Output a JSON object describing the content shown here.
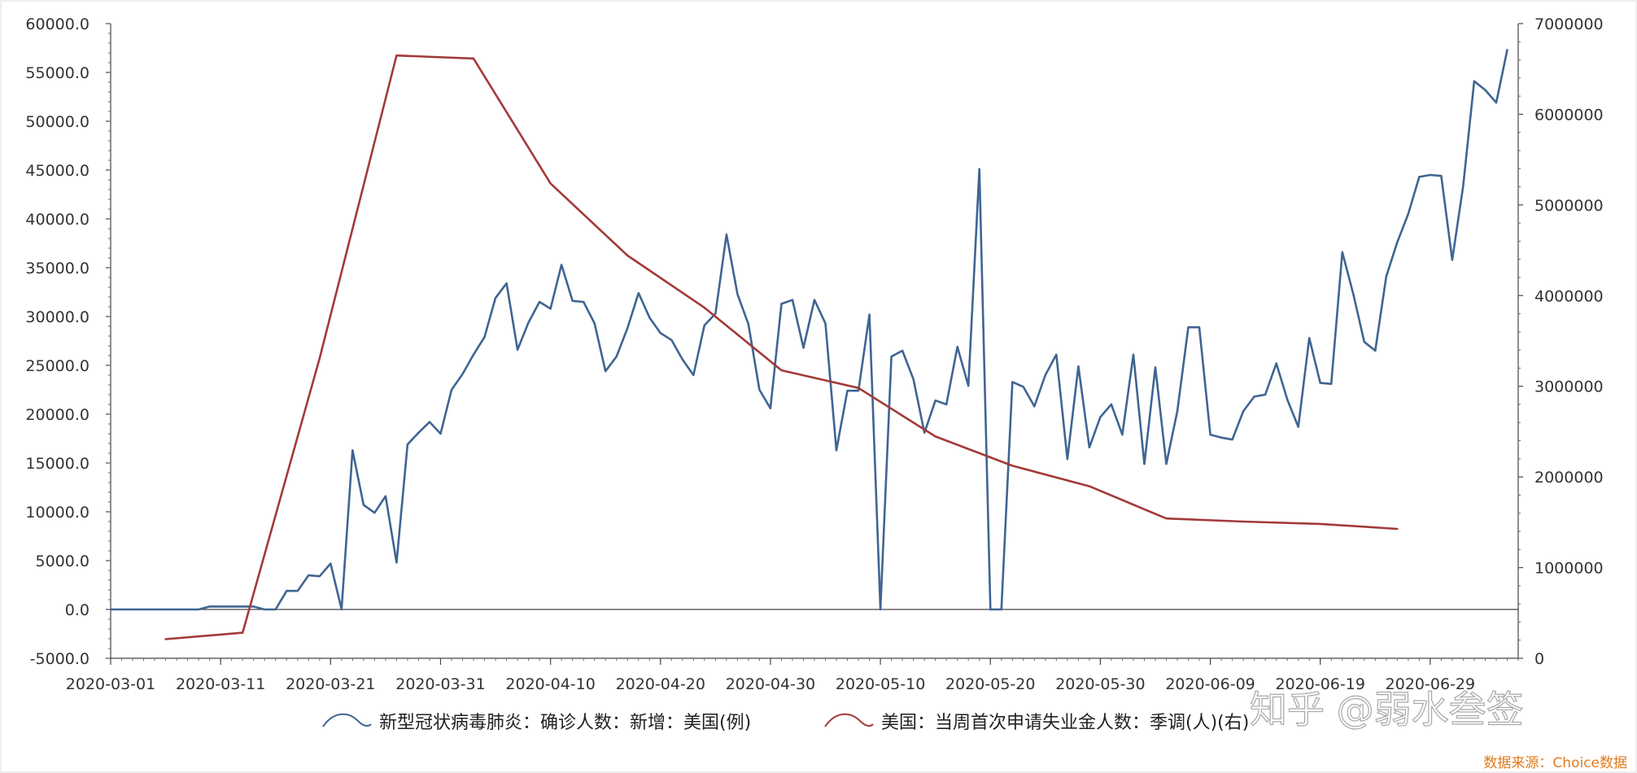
{
  "chart_data": {
    "type": "line",
    "left_axis": {
      "ylim": [
        -5000,
        60000
      ],
      "ticks": [
        "60000.0",
        "55000.0",
        "50000.0",
        "45000.0",
        "40000.0",
        "35000.0",
        "30000.0",
        "25000.0",
        "20000.0",
        "15000.0",
        "10000.0",
        "5000.0",
        "0.0",
        "-5000.0"
      ]
    },
    "right_axis": {
      "ylim": [
        0,
        7000000
      ],
      "ticks": [
        "7000000",
        "6000000",
        "5000000",
        "4000000",
        "3000000",
        "2000000",
        "1000000",
        "0"
      ]
    },
    "x_axis": {
      "start": "2020-03-01",
      "end": "2020-07-07",
      "ticks": [
        "2020-03-01",
        "2020-03-11",
        "2020-03-21",
        "2020-03-31",
        "2020-04-10",
        "2020-04-20",
        "2020-04-30",
        "2020-05-10",
        "2020-05-20",
        "2020-05-30",
        "2020-06-09",
        "2020-06-19",
        "2020-06-29"
      ]
    },
    "series": [
      {
        "name": "新型冠状病毒肺炎：确诊人数：新增：美国(例)",
        "axis": "left",
        "color": "#3f6592",
        "points": [
          [
            "2020-03-01",
            0
          ],
          [
            "2020-03-02",
            0
          ],
          [
            "2020-03-03",
            0
          ],
          [
            "2020-03-04",
            0
          ],
          [
            "2020-03-05",
            0
          ],
          [
            "2020-03-06",
            0
          ],
          [
            "2020-03-07",
            0
          ],
          [
            "2020-03-08",
            0
          ],
          [
            "2020-03-09",
            0
          ],
          [
            "2020-03-10",
            300
          ],
          [
            "2020-03-11",
            300
          ],
          [
            "2020-03-12",
            300
          ],
          [
            "2020-03-13",
            300
          ],
          [
            "2020-03-14",
            300
          ],
          [
            "2020-03-15",
            0
          ],
          [
            "2020-03-16",
            0
          ],
          [
            "2020-03-17",
            1900
          ],
          [
            "2020-03-18",
            1900
          ],
          [
            "2020-03-19",
            3500
          ],
          [
            "2020-03-20",
            3400
          ],
          [
            "2020-03-21",
            4700
          ],
          [
            "2020-03-22",
            0
          ],
          [
            "2020-03-23",
            16300
          ],
          [
            "2020-03-24",
            10700
          ],
          [
            "2020-03-25",
            9900
          ],
          [
            "2020-03-26",
            11600
          ],
          [
            "2020-03-27",
            4800
          ],
          [
            "2020-03-28",
            16900
          ],
          [
            "2020-03-29",
            18100
          ],
          [
            "2020-03-30",
            19200
          ],
          [
            "2020-03-31",
            18000
          ],
          [
            "2020-04-01",
            22500
          ],
          [
            "2020-04-02",
            24100
          ],
          [
            "2020-04-03",
            26100
          ],
          [
            "2020-04-04",
            27900
          ],
          [
            "2020-04-05",
            31900
          ],
          [
            "2020-04-06",
            33400
          ],
          [
            "2020-04-07",
            26600
          ],
          [
            "2020-04-08",
            29400
          ],
          [
            "2020-04-09",
            31500
          ],
          [
            "2020-04-10",
            30800
          ],
          [
            "2020-04-11",
            35300
          ],
          [
            "2020-04-12",
            31600
          ],
          [
            "2020-04-13",
            31500
          ],
          [
            "2020-04-14",
            29300
          ],
          [
            "2020-04-15",
            24400
          ],
          [
            "2020-04-16",
            25900
          ],
          [
            "2020-04-17",
            28800
          ],
          [
            "2020-04-18",
            32400
          ],
          [
            "2020-04-19",
            29900
          ],
          [
            "2020-04-20",
            28300
          ],
          [
            "2020-04-21",
            27600
          ],
          [
            "2020-04-22",
            25600
          ],
          [
            "2020-04-23",
            24000
          ],
          [
            "2020-04-24",
            29100
          ],
          [
            "2020-04-25",
            30300
          ],
          [
            "2020-04-26",
            38400
          ],
          [
            "2020-04-27",
            32300
          ],
          [
            "2020-04-28",
            29200
          ],
          [
            "2020-04-29",
            22500
          ],
          [
            "2020-04-30",
            20600
          ],
          [
            "2020-05-01",
            31300
          ],
          [
            "2020-05-02",
            31700
          ],
          [
            "2020-05-03",
            26800
          ],
          [
            "2020-05-04",
            31700
          ],
          [
            "2020-05-05",
            29300
          ],
          [
            "2020-05-06",
            16300
          ],
          [
            "2020-05-07",
            22400
          ],
          [
            "2020-05-08",
            22400
          ],
          [
            "2020-05-09",
            30200
          ],
          [
            "2020-05-10",
            0
          ],
          [
            "2020-05-11",
            25900
          ],
          [
            "2020-05-12",
            26500
          ],
          [
            "2020-05-13",
            23600
          ],
          [
            "2020-05-14",
            18100
          ],
          [
            "2020-05-15",
            21400
          ],
          [
            "2020-05-16",
            21000
          ],
          [
            "2020-05-17",
            26900
          ],
          [
            "2020-05-18",
            22900
          ],
          [
            "2020-05-19",
            45100
          ],
          [
            "2020-05-20",
            0
          ],
          [
            "2020-05-21",
            0
          ],
          [
            "2020-05-22",
            23300
          ],
          [
            "2020-05-23",
            22800
          ],
          [
            "2020-05-24",
            20800
          ],
          [
            "2020-05-25",
            24000
          ],
          [
            "2020-05-26",
            26100
          ],
          [
            "2020-05-27",
            15400
          ],
          [
            "2020-05-28",
            24900
          ],
          [
            "2020-05-29",
            16600
          ],
          [
            "2020-05-30",
            19700
          ],
          [
            "2020-05-31",
            21000
          ],
          [
            "2020-06-01",
            17900
          ],
          [
            "2020-06-02",
            26100
          ],
          [
            "2020-06-03",
            14900
          ],
          [
            "2020-06-04",
            24800
          ],
          [
            "2020-06-05",
            14900
          ],
          [
            "2020-06-06",
            20300
          ],
          [
            "2020-06-07",
            28900
          ],
          [
            "2020-06-08",
            28900
          ],
          [
            "2020-06-09",
            17900
          ],
          [
            "2020-06-10",
            17600
          ],
          [
            "2020-06-11",
            17400
          ],
          [
            "2020-06-12",
            20300
          ],
          [
            "2020-06-13",
            21800
          ],
          [
            "2020-06-14",
            22000
          ],
          [
            "2020-06-15",
            25200
          ],
          [
            "2020-06-16",
            21500
          ],
          [
            "2020-06-17",
            18700
          ],
          [
            "2020-06-18",
            27800
          ],
          [
            "2020-06-19",
            23200
          ],
          [
            "2020-06-20",
            23100
          ],
          [
            "2020-06-21",
            36600
          ],
          [
            "2020-06-22",
            32300
          ],
          [
            "2020-06-23",
            27400
          ],
          [
            "2020-06-24",
            26500
          ],
          [
            "2020-06-25",
            34100
          ],
          [
            "2020-06-26",
            37600
          ],
          [
            "2020-06-27",
            40500
          ],
          [
            "2020-06-28",
            44300
          ],
          [
            "2020-06-29",
            44500
          ],
          [
            "2020-06-30",
            44400
          ],
          [
            "2020-07-01",
            35800
          ],
          [
            "2020-07-02",
            43400
          ],
          [
            "2020-07-03",
            54100
          ],
          [
            "2020-07-04",
            53200
          ],
          [
            "2020-07-05",
            51900
          ],
          [
            "2020-07-06",
            57300
          ]
        ]
      },
      {
        "name": "美国：当周首次申请失业金人数：季调(人)(右)",
        "axis": "right",
        "color": "#a23a38",
        "points": [
          [
            "2020-03-06",
            211000
          ],
          [
            "2020-03-13",
            282000
          ],
          [
            "2020-03-20",
            3307000
          ],
          [
            "2020-03-27",
            6648000
          ],
          [
            "2020-04-03",
            6615000
          ],
          [
            "2020-04-10",
            5237000
          ],
          [
            "2020-04-17",
            4442000
          ],
          [
            "2020-04-24",
            3867000
          ],
          [
            "2020-05-01",
            3176000
          ],
          [
            "2020-05-08",
            2981000
          ],
          [
            "2020-05-15",
            2446000
          ],
          [
            "2020-05-22",
            2123000
          ],
          [
            "2020-05-29",
            1897000
          ],
          [
            "2020-06-05",
            1542000
          ],
          [
            "2020-06-12",
            1508000
          ],
          [
            "2020-06-19",
            1482000
          ],
          [
            "2020-06-26",
            1427000
          ]
        ]
      }
    ],
    "legend": {
      "placement": "bottom"
    }
  },
  "source_label": "数据来源：Choice数据",
  "watermark": "知乎 @弱水叁签"
}
